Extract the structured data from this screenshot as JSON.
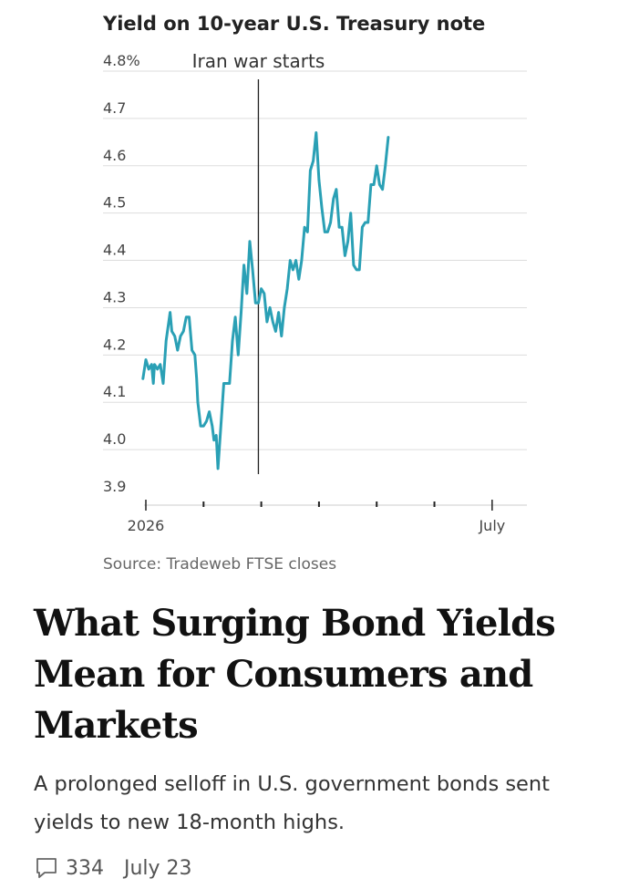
{
  "article": {
    "headline": "What Surging Bond Yields Mean for Consumers and Markets",
    "summary": "A prolonged selloff in U.S. government bonds sent yields to new 18-month highs.",
    "comment_count": "334",
    "date": "July 23",
    "comment_icon": "speech-bubble-icon"
  },
  "chart_data": {
    "type": "line",
    "title": "Yield on 10-year U.S. Treasury note",
    "source": "Source: Tradeweb FTSE closes",
    "y_tick_labels": [
      "4.8%",
      "4.7",
      "4.6",
      "4.5",
      "4.4",
      "4.3",
      "4.2",
      "4.1",
      "4.0",
      "3.9"
    ],
    "y_ticks": [
      4.8,
      4.7,
      4.6,
      4.5,
      4.4,
      4.3,
      4.2,
      4.1,
      4.0,
      3.9
    ],
    "ylim": [
      3.9,
      4.8
    ],
    "x_tick_labels": [
      "2026",
      "July"
    ],
    "x_range": [
      0,
      6.5
    ],
    "x_tick_positions": [
      0,
      1,
      2,
      3,
      4,
      5,
      6
    ],
    "x_labeled_positions": [
      0,
      6
    ],
    "grid": true,
    "line_color": "#2aa0b5",
    "annotation": {
      "label": "Iran war starts",
      "x": 1.95
    },
    "series": [
      {
        "values": [
          [
            -0.05,
            4.15
          ],
          [
            0.0,
            4.19
          ],
          [
            0.05,
            4.17
          ],
          [
            0.1,
            4.18
          ],
          [
            0.13,
            4.14
          ],
          [
            0.15,
            4.18
          ],
          [
            0.2,
            4.17
          ],
          [
            0.25,
            4.18
          ],
          [
            0.3,
            4.14
          ],
          [
            0.35,
            4.23
          ],
          [
            0.42,
            4.29
          ],
          [
            0.45,
            4.25
          ],
          [
            0.5,
            4.24
          ],
          [
            0.55,
            4.21
          ],
          [
            0.6,
            4.24
          ],
          [
            0.65,
            4.25
          ],
          [
            0.7,
            4.28
          ],
          [
            0.75,
            4.28
          ],
          [
            0.8,
            4.21
          ],
          [
            0.85,
            4.2
          ],
          [
            0.88,
            4.15
          ],
          [
            0.9,
            4.1
          ],
          [
            0.95,
            4.05
          ],
          [
            1.0,
            4.05
          ],
          [
            1.05,
            4.06
          ],
          [
            1.1,
            4.08
          ],
          [
            1.15,
            4.05
          ],
          [
            1.18,
            4.02
          ],
          [
            1.22,
            4.03
          ],
          [
            1.25,
            3.96
          ],
          [
            1.3,
            4.05
          ],
          [
            1.35,
            4.14
          ],
          [
            1.4,
            4.14
          ],
          [
            1.45,
            4.14
          ],
          [
            1.5,
            4.23
          ],
          [
            1.55,
            4.28
          ],
          [
            1.6,
            4.2
          ],
          [
            1.65,
            4.29
          ],
          [
            1.7,
            4.39
          ],
          [
            1.75,
            4.33
          ],
          [
            1.8,
            4.44
          ],
          [
            1.85,
            4.38
          ],
          [
            1.9,
            4.31
          ],
          [
            1.95,
            4.31
          ],
          [
            2.0,
            4.34
          ],
          [
            2.05,
            4.33
          ],
          [
            2.1,
            4.27
          ],
          [
            2.15,
            4.3
          ],
          [
            2.2,
            4.27
          ],
          [
            2.25,
            4.25
          ],
          [
            2.3,
            4.29
          ],
          [
            2.35,
            4.24
          ],
          [
            2.4,
            4.3
          ],
          [
            2.45,
            4.34
          ],
          [
            2.5,
            4.4
          ],
          [
            2.55,
            4.38
          ],
          [
            2.6,
            4.4
          ],
          [
            2.65,
            4.36
          ],
          [
            2.7,
            4.4
          ],
          [
            2.75,
            4.47
          ],
          [
            2.8,
            4.46
          ],
          [
            2.85,
            4.59
          ],
          [
            2.9,
            4.61
          ],
          [
            2.95,
            4.67
          ],
          [
            3.0,
            4.57
          ],
          [
            3.05,
            4.51
          ],
          [
            3.1,
            4.46
          ],
          [
            3.15,
            4.46
          ],
          [
            3.2,
            4.48
          ],
          [
            3.25,
            4.53
          ],
          [
            3.3,
            4.55
          ],
          [
            3.35,
            4.47
          ],
          [
            3.4,
            4.47
          ],
          [
            3.45,
            4.41
          ],
          [
            3.5,
            4.44
          ],
          [
            3.55,
            4.5
          ],
          [
            3.6,
            4.39
          ],
          [
            3.65,
            4.38
          ],
          [
            3.7,
            4.38
          ],
          [
            3.75,
            4.47
          ],
          [
            3.8,
            4.48
          ],
          [
            3.85,
            4.48
          ],
          [
            3.9,
            4.56
          ],
          [
            3.95,
            4.56
          ],
          [
            4.0,
            4.6
          ],
          [
            4.05,
            4.56
          ],
          [
            4.1,
            4.55
          ],
          [
            4.15,
            4.6
          ],
          [
            4.2,
            4.66
          ]
        ]
      }
    ]
  }
}
